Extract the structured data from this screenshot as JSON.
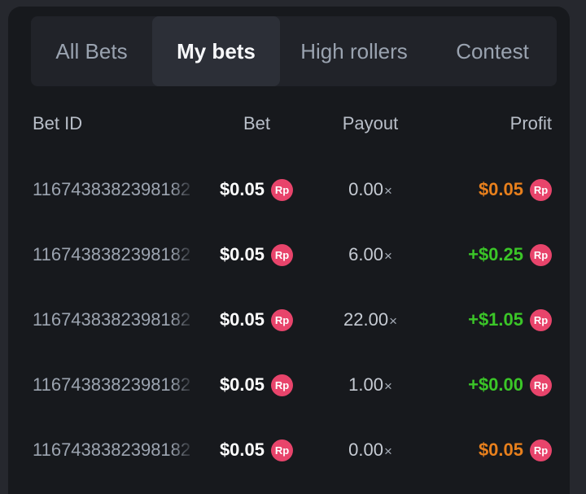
{
  "tabs": {
    "items": [
      {
        "label": "All Bets",
        "active": false
      },
      {
        "label": "My bets",
        "active": true
      },
      {
        "label": "High rollers",
        "active": false
      },
      {
        "label": "Contest",
        "active": false
      }
    ]
  },
  "table": {
    "headers": [
      "Bet ID",
      "Bet",
      "Payout",
      "Profit"
    ],
    "payout_suffix": "×",
    "currency_badge": "Rp",
    "rows": [
      {
        "bet_id": "1167438382398182",
        "bet": "$0.05",
        "payout": "0.00",
        "profit": "$0.05",
        "profit_state": "loss"
      },
      {
        "bet_id": "1167438382398182",
        "bet": "$0.05",
        "payout": "6.00",
        "profit": "+$0.25",
        "profit_state": "win"
      },
      {
        "bet_id": "1167438382398182",
        "bet": "$0.05",
        "payout": "22.00",
        "profit": "+$1.05",
        "profit_state": "win"
      },
      {
        "bet_id": "1167438382398182",
        "bet": "$0.05",
        "payout": "1.00",
        "profit": "+$0.00",
        "profit_state": "win"
      },
      {
        "bet_id": "1167438382398182",
        "bet": "$0.05",
        "payout": "0.00",
        "profit": "$0.05",
        "profit_state": "loss"
      }
    ]
  },
  "colors": {
    "profit_positive": "#3bc628",
    "profit_negative": "#e8801d",
    "currency_badge": "#e8446b",
    "card_background": "#17191d",
    "page_background": "#26282e"
  }
}
